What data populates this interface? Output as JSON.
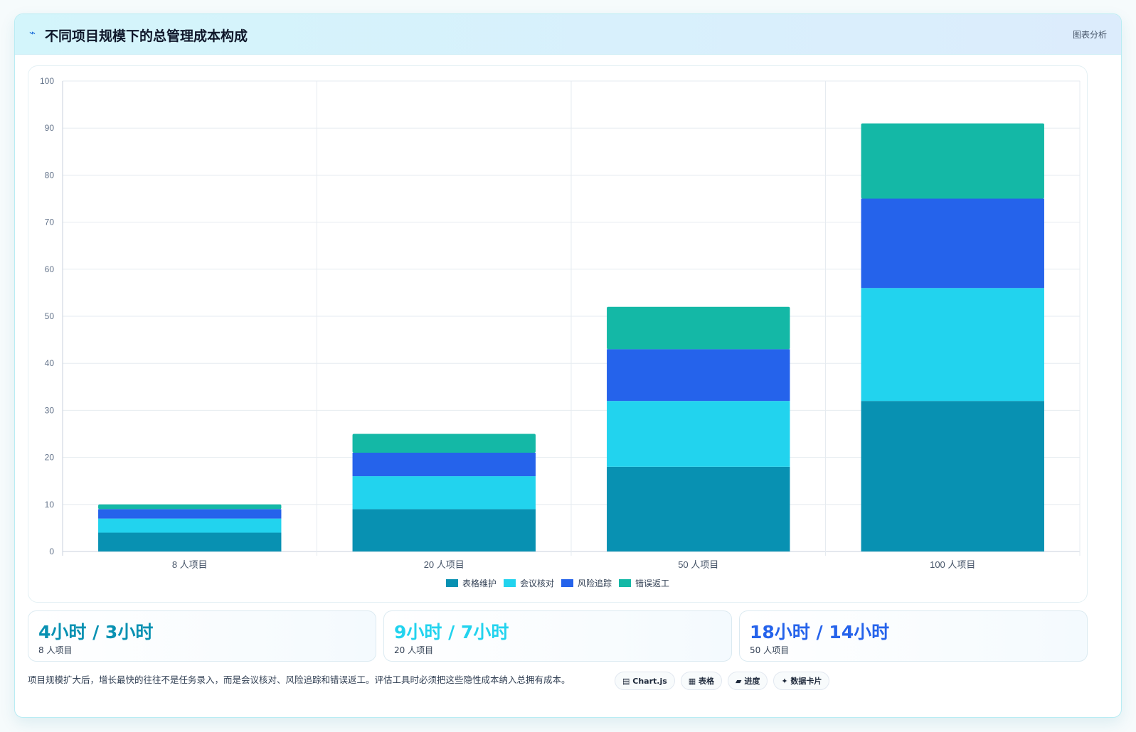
{
  "header": {
    "icon": "line-chart-icon",
    "title": "不同项目规模下的总管理成本构成",
    "tag": "图表分析"
  },
  "chart_data": {
    "type": "bar",
    "stacked": true,
    "categories": [
      "8 人项目",
      "20 人项目",
      "50 人项目",
      "100 人项目"
    ],
    "series": [
      {
        "name": "表格维护",
        "color": "#0891b2",
        "values": [
          4,
          9,
          18,
          32
        ]
      },
      {
        "name": "会议核对",
        "color": "#22d3ee",
        "values": [
          3,
          7,
          14,
          24
        ]
      },
      {
        "name": "风险追踪",
        "color": "#2563eb",
        "values": [
          2,
          5,
          11,
          19
        ]
      },
      {
        "name": "错误返工",
        "color": "#14b8a6",
        "values": [
          1,
          4,
          9,
          16
        ]
      }
    ],
    "ylim": [
      0,
      100
    ],
    "yticks": [
      0,
      10,
      20,
      30,
      40,
      50,
      60,
      70,
      80,
      90,
      100
    ],
    "grid": true,
    "legend_position": "bottom"
  },
  "kpis": [
    {
      "value": "4小时 / 3小时",
      "label": "8 人项目",
      "color": "#0891b2"
    },
    {
      "value": "9小时 / 7小时",
      "label": "20 人项目",
      "color": "#22d3ee"
    },
    {
      "value": "18小时 / 14小时",
      "label": "50 人项目",
      "color": "#2563eb"
    }
  ],
  "footer": {
    "note": "项目规模扩大后，增长最快的往往不是任务录入，而是会议核对、风险追踪和错误返工。评估工具时必须把这些隐性成本纳入总拥有成本。",
    "chips": [
      {
        "icon": "▤",
        "label": "Chart.js"
      },
      {
        "icon": "▦",
        "label": "表格"
      },
      {
        "icon": "▰",
        "label": "进度"
      },
      {
        "icon": "✦",
        "label": "数据卡片"
      }
    ]
  }
}
